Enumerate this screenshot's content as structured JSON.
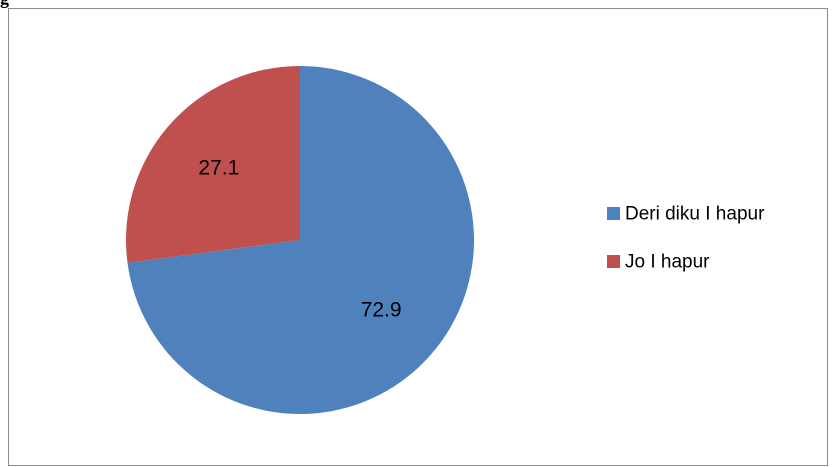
{
  "page_fragment": {
    "partial_text": "g"
  },
  "chart_data": {
    "type": "pie",
    "title": "",
    "start_angle_deg": 0,
    "direction": "clockwise",
    "legend_position": "right",
    "slices": [
      {
        "name": "Deri diku I hapur",
        "value": 72.9,
        "label": "72.9",
        "color": "#4f81bd"
      },
      {
        "name": "Jo I hapur",
        "value": 27.1,
        "label": "27.1",
        "color": "#c0504d"
      }
    ]
  }
}
